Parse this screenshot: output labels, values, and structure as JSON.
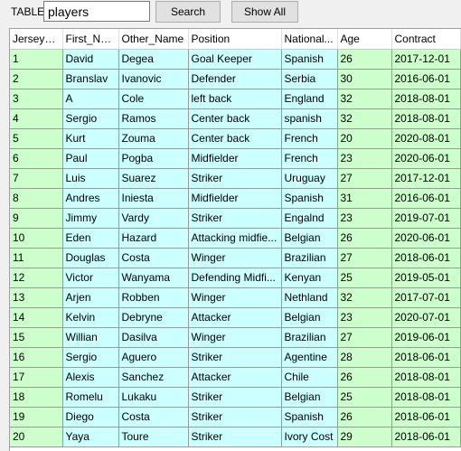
{
  "toolbar": {
    "table_label": "TABLE",
    "table_value": "players",
    "search_label": "Search",
    "show_all_label": "Show All"
  },
  "grid": {
    "columns": [
      "Jersey_No",
      "First_Na...",
      "Other_Name",
      "Position",
      "National...",
      "Age",
      "Contract"
    ],
    "rows": [
      [
        "1",
        "David",
        "Degea",
        "Goal Keeper",
        "Spanish",
        "26",
        "2017-12-01"
      ],
      [
        "2",
        "Branslav",
        "Ivanovic",
        "Defender",
        "Serbia",
        "30",
        "2016-06-01"
      ],
      [
        "3",
        "A",
        "Cole",
        "left back",
        "England",
        "32",
        "2018-08-01"
      ],
      [
        "4",
        "Sergio",
        "Ramos",
        "Center back",
        "spanish",
        "32",
        "2018-08-01"
      ],
      [
        "5",
        "Kurt",
        "Zouma",
        "Center back",
        "French",
        "20",
        "2020-08-01"
      ],
      [
        "6",
        "Paul",
        "Pogba",
        "Midfielder",
        "French",
        "23",
        "2020-06-01"
      ],
      [
        "7",
        "Luis",
        "Suarez",
        "Striker",
        "Uruguay",
        "27",
        "2017-12-01"
      ],
      [
        "8",
        "Andres",
        "Iniesta",
        "Midfielder",
        "Spanish",
        "31",
        "2016-06-01"
      ],
      [
        "9",
        "Jimmy",
        "Vardy",
        "Striker",
        "Engalnd",
        "23",
        "2019-07-01"
      ],
      [
        "10",
        "Eden",
        "Hazard",
        "Attacking midfie...",
        "Belgian",
        "26",
        "2020-06-01"
      ],
      [
        "11",
        "Douglas",
        "Costa",
        "Winger",
        "Brazilian",
        "27",
        "2018-06-01"
      ],
      [
        "12",
        "Victor",
        "Wanyama",
        "Defending Midfi...",
        "Kenyan",
        "25",
        "2019-05-01"
      ],
      [
        "13",
        "Arjen",
        "Robben",
        "Winger",
        "Nethland",
        "32",
        "2017-07-01"
      ],
      [
        "14",
        "Kelvin",
        "Debryne",
        "Attacker",
        "Belgian",
        "23",
        "2020-07-01"
      ],
      [
        "15",
        "Willian",
        "Dasilva",
        "Winger",
        "Brazilian",
        "27",
        "2019-06-01"
      ],
      [
        "16",
        "Sergio",
        "Aguero",
        "Striker",
        "Agentine",
        "28",
        "2018-06-01"
      ],
      [
        "17",
        "Alexis",
        "Sanchez",
        "Attacker",
        "Chile",
        "26",
        "2018-08-01"
      ],
      [
        "18",
        "Romelu",
        "Lukaku",
        "Striker",
        "Belgian",
        "25",
        "2018-08-01"
      ],
      [
        "19",
        "Diego",
        "Costa",
        "Striker",
        "Spanish",
        "26",
        "2018-06-01"
      ],
      [
        "20",
        "Yaya",
        "Toure",
        "Striker",
        "Ivory Cost",
        "29",
        "2018-06-01"
      ]
    ]
  }
}
